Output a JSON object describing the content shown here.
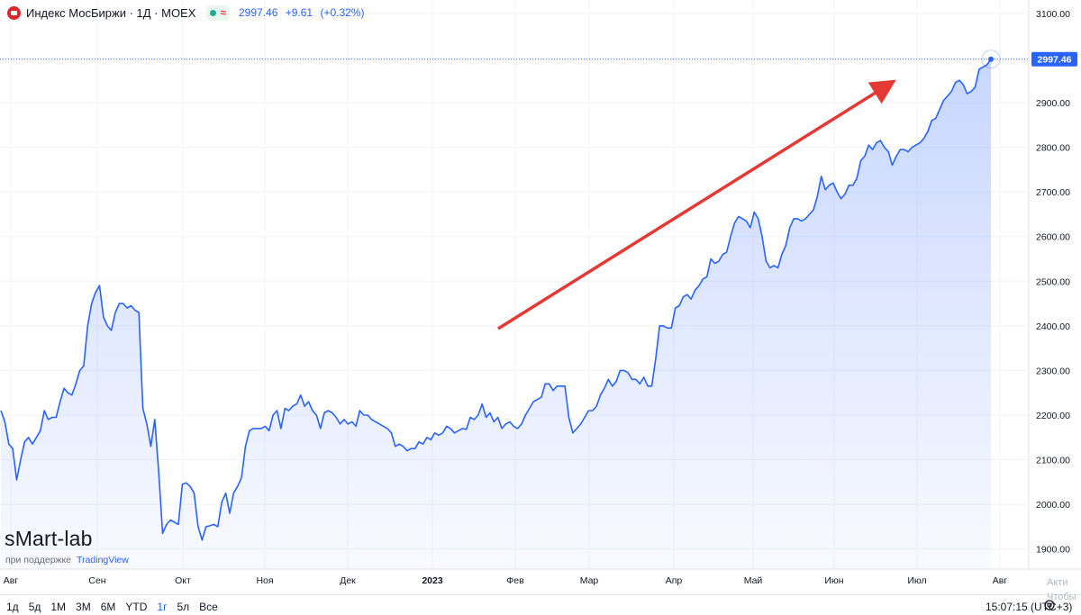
{
  "header": {
    "title": "Индекс МосБиржи · 1Д · MOEX",
    "status_delay": "≈",
    "last_price": "2997.46",
    "change": "+9.61",
    "change_pct": "(+0.32%)"
  },
  "watermark": {
    "brand": "sMart-lab",
    "support_text": "при поддержке",
    "support_link": "TradingView"
  },
  "bottom_bar": {
    "periods": [
      "1д",
      "5д",
      "1М",
      "3М",
      "6М",
      "YTD",
      "1г",
      "5л",
      "Все"
    ],
    "active_period": "1г",
    "clock": "15:07:15 (UTC+3)",
    "os_watermark_1": "Акти",
    "os_watermark_2": "Чтобы"
  },
  "colors": {
    "line": "#2962ff",
    "arrow": "#e53935",
    "axis_text": "#131722",
    "grid": "#f0f3fa"
  },
  "chart_data": {
    "type": "area",
    "title": "Индекс МосБиржи · 1Д · MOEX",
    "series": [
      {
        "name": "",
        "values": [
          2210,
          2185,
          2135,
          2125,
          2055,
          2100,
          2140,
          2150,
          2135,
          2150,
          2165,
          2210,
          2190,
          2195,
          2195,
          2230,
          2260,
          2250,
          2245,
          2270,
          2300,
          2310,
          2400,
          2450,
          2475,
          2490,
          2420,
          2400,
          2390,
          2430,
          2450,
          2450,
          2440,
          2445,
          2435,
          2430,
          2215,
          2180,
          2130,
          2190,
          2075,
          1935,
          1955,
          1965,
          1960,
          1955,
          2045,
          2048,
          2040,
          2025,
          1950,
          1920,
          1950,
          1952,
          1955,
          1950,
          2005,
          2025,
          1980,
          2025,
          2040,
          2060,
          2130,
          2165,
          2170,
          2170,
          2170,
          2175,
          2165,
          2200,
          2210,
          2170,
          2215,
          2210,
          2220,
          2225,
          2245,
          2220,
          2230,
          2210,
          2200,
          2170,
          2205,
          2210,
          2205,
          2195,
          2180,
          2190,
          2180,
          2185,
          2175,
          2210,
          2200,
          2200,
          2190,
          2185,
          2180,
          2175,
          2170,
          2160,
          2130,
          2135,
          2130,
          2120,
          2125,
          2125,
          2140,
          2135,
          2150,
          2145,
          2160,
          2155,
          2160,
          2175,
          2170,
          2160,
          2165,
          2170,
          2168,
          2195,
          2190,
          2200,
          2225,
          2195,
          2205,
          2185,
          2195,
          2170,
          2180,
          2185,
          2175,
          2170,
          2180,
          2200,
          2215,
          2230,
          2235,
          2240,
          2270,
          2270,
          2255,
          2265,
          2265,
          2265,
          2195,
          2160,
          2170,
          2180,
          2195,
          2210,
          2210,
          2220,
          2245,
          2260,
          2280,
          2265,
          2275,
          2300,
          2300,
          2295,
          2280,
          2280,
          2270,
          2285,
          2265,
          2265,
          2325,
          2400,
          2400,
          2395,
          2395,
          2440,
          2445,
          2465,
          2470,
          2460,
          2480,
          2490,
          2505,
          2510,
          2550,
          2540,
          2545,
          2560,
          2565,
          2600,
          2630,
          2645,
          2640,
          2635,
          2620,
          2655,
          2640,
          2600,
          2545,
          2530,
          2535,
          2530,
          2560,
          2580,
          2620,
          2640,
          2640,
          2635,
          2640,
          2650,
          2660,
          2690,
          2735,
          2705,
          2715,
          2720,
          2700,
          2685,
          2695,
          2715,
          2715,
          2730,
          2770,
          2780,
          2805,
          2795,
          2810,
          2815,
          2800,
          2790,
          2760,
          2780,
          2795,
          2795,
          2790,
          2800,
          2805,
          2810,
          2820,
          2835,
          2860,
          2865,
          2885,
          2905,
          2915,
          2925,
          2945,
          2950,
          2940,
          2920,
          2925,
          2935,
          2975,
          2980,
          2985,
          2997.46
        ]
      }
    ],
    "x_ticks": [
      "Авг",
      "Сен",
      "Окт",
      "Ноя",
      "Дек",
      "2023",
      "Фев",
      "Мар",
      "Апр",
      "Май",
      "Июн",
      "Июл",
      "Авг"
    ],
    "y_ticks": [
      "1900.00",
      "2000.00",
      "2100.00",
      "2200.00",
      "2300.00",
      "2400.00",
      "2500.00",
      "2600.00",
      "2700.00",
      "2800.00",
      "2900.00",
      "3000.00",
      "3100.00"
    ],
    "ylim": [
      1855,
      3130
    ],
    "last_value_label": "2997.46",
    "grid": true
  }
}
